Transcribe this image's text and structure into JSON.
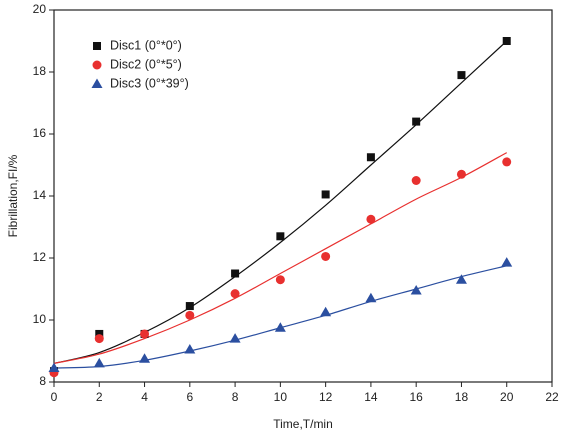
{
  "chart_data": {
    "type": "scatter",
    "x_label": "Time,T/min",
    "y_label": "Fibrillation,FI/%",
    "x": [
      0,
      2,
      4,
      6,
      8,
      10,
      12,
      14,
      16,
      18,
      20
    ],
    "series": [
      {
        "name": "Disc1 (0°*0°)",
        "color": "#111111",
        "marker": "square",
        "values": [
          8.35,
          9.55,
          9.55,
          10.45,
          11.5,
          12.7,
          14.05,
          15.25,
          16.4,
          17.9,
          19.0
        ],
        "fit_values": [
          8.6,
          8.95,
          9.6,
          10.4,
          11.4,
          12.5,
          13.7,
          15.0,
          16.3,
          17.65,
          19.0
        ]
      },
      {
        "name": "Disc2 (0°*5°)",
        "color": "#e8302f",
        "marker": "circle",
        "values": [
          8.3,
          9.4,
          9.55,
          10.15,
          10.85,
          11.3,
          12.05,
          13.25,
          14.5,
          14.7,
          15.1
        ],
        "fit_values": [
          8.6,
          8.9,
          9.4,
          10.0,
          10.7,
          11.5,
          12.3,
          13.1,
          13.9,
          14.6,
          15.4
        ]
      },
      {
        "name": "Disc3 (0°*39°)",
        "color": "#2b4fa0",
        "marker": "triangle",
        "values": [
          8.45,
          8.6,
          8.75,
          9.05,
          9.4,
          9.75,
          10.25,
          10.7,
          10.95,
          11.3,
          11.85
        ],
        "fit_values": [
          8.45,
          8.5,
          8.7,
          9.0,
          9.35,
          9.75,
          10.15,
          10.6,
          11.0,
          11.4,
          11.75
        ]
      }
    ],
    "xlim": [
      0,
      22
    ],
    "xticks": [
      0,
      2,
      4,
      6,
      8,
      10,
      12,
      14,
      16,
      18,
      20,
      22
    ],
    "ylim": [
      8,
      20
    ],
    "yticks": [
      8,
      10,
      12,
      14,
      16,
      18,
      20
    ],
    "grid": false,
    "legend": "upper left"
  }
}
